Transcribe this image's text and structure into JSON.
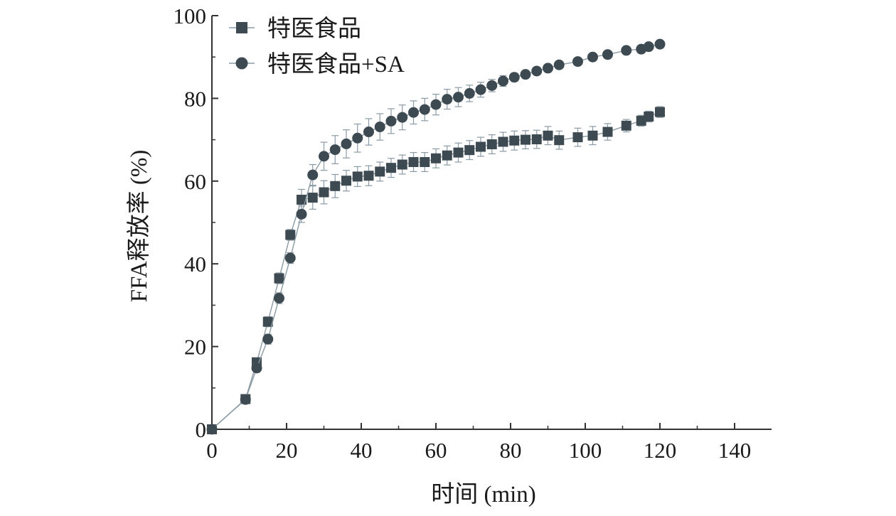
{
  "chart_data": {
    "type": "line",
    "xlabel": "时间 (min)",
    "ylabel": "FFA释放率 (%)",
    "xlim": [
      0,
      150
    ],
    "ylim": [
      0,
      100
    ],
    "xticks": [
      0,
      20,
      40,
      60,
      80,
      100,
      120,
      140
    ],
    "yticks": [
      0,
      20,
      40,
      60,
      80,
      100
    ],
    "grid": false,
    "legend_position": "top-left",
    "series": [
      {
        "name": "特医食品",
        "marker": "square",
        "color": "#3d4a52",
        "line_color": "#8a9aa4",
        "x": [
          0,
          9,
          12,
          15,
          18,
          21,
          24,
          27,
          30,
          33,
          36,
          39,
          42,
          45,
          48,
          51,
          54,
          57,
          60,
          63,
          66,
          69,
          72,
          75,
          78,
          81,
          84,
          87,
          90,
          93,
          98,
          102,
          106,
          111,
          115,
          117,
          120
        ],
        "y": [
          0,
          7.3,
          16.2,
          26.0,
          36.5,
          47.0,
          55.5,
          56.0,
          57.3,
          58.8,
          60.1,
          61.1,
          61.3,
          62.3,
          63.2,
          64.0,
          64.6,
          64.6,
          65.5,
          66.2,
          66.9,
          67.5,
          68.3,
          68.9,
          69.5,
          69.8,
          70.0,
          70.1,
          71.0,
          69.9,
          70.6,
          71.0,
          71.9,
          73.4,
          74.6,
          75.6,
          76.7
        ],
        "error": [
          0,
          0.6,
          1.0,
          1.2,
          1.3,
          1.3,
          2.5,
          2.8,
          2.8,
          2.8,
          2.5,
          2.4,
          2.4,
          2.3,
          2.3,
          2.3,
          2.3,
          2.3,
          2.3,
          2.3,
          2.3,
          2.3,
          2.3,
          2.3,
          2.3,
          2.3,
          2.2,
          2.2,
          2.2,
          2.2,
          2.2,
          2.2,
          2.0,
          1.5,
          1.3,
          1.3,
          1.3
        ]
      },
      {
        "name": "特医食品+SA",
        "marker": "circle",
        "color": "#3d4a52",
        "line_color": "#8a9aa4",
        "x": [
          0,
          9,
          12,
          15,
          18,
          21,
          24,
          27,
          30,
          33,
          36,
          39,
          42,
          45,
          48,
          51,
          54,
          57,
          60,
          63,
          66,
          69,
          72,
          75,
          78,
          81,
          84,
          87,
          90,
          93,
          98,
          102,
          106,
          111,
          115,
          117,
          120
        ],
        "y": [
          0,
          7.2,
          14.8,
          21.8,
          31.7,
          41.4,
          52.0,
          61.5,
          66.0,
          67.6,
          69.0,
          70.4,
          71.9,
          73.1,
          74.5,
          75.4,
          76.6,
          77.3,
          78.5,
          79.8,
          80.3,
          81.2,
          82.1,
          83.1,
          84.2,
          85.1,
          85.8,
          86.6,
          87.3,
          88.1,
          88.9,
          90.0,
          90.6,
          91.6,
          91.9,
          92.5,
          93.1
        ],
        "error": [
          0,
          0.6,
          1.0,
          1.2,
          1.3,
          1.3,
          2.0,
          2.5,
          3.4,
          3.4,
          3.4,
          3.4,
          3.2,
          3.2,
          3.0,
          3.0,
          2.8,
          2.7,
          2.5,
          2.4,
          2.3,
          2.0,
          1.8,
          1.5,
          1.3,
          1.0,
          0.8,
          0.7,
          0.7,
          0.6,
          0.6,
          0.5,
          0.5,
          0.5,
          0.5,
          0.5,
          0.5
        ]
      }
    ]
  }
}
